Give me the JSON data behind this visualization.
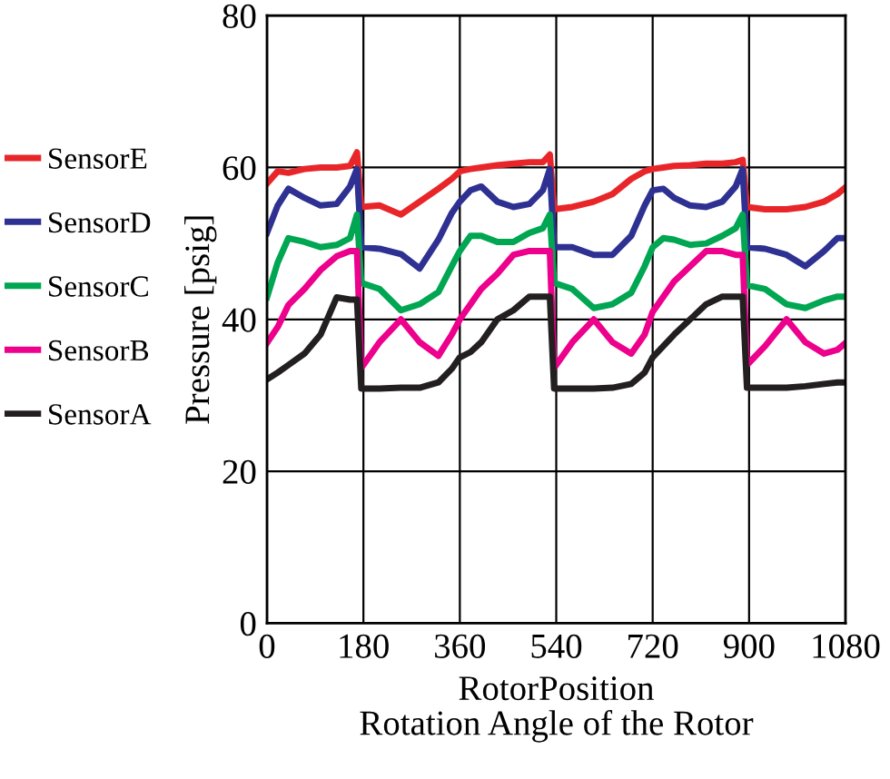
{
  "chart_data": {
    "type": "line",
    "xlabel": "RotorPosition\nRotation Angle of the Rotor",
    "ylabel": "Pressure [psig]",
    "x": [
      0,
      20,
      40,
      70,
      100,
      130,
      155,
      168,
      176,
      210,
      250,
      285,
      320,
      345,
      360,
      380,
      400,
      430,
      460,
      490,
      515,
      528,
      536,
      570,
      610,
      645,
      680,
      705,
      720,
      740,
      760,
      790,
      820,
      850,
      875,
      888,
      896,
      930,
      970,
      1005,
      1040,
      1065,
      1080
    ],
    "xlim": [
      0,
      1080
    ],
    "xticks": [
      0,
      180,
      360,
      540,
      720,
      900,
      1080
    ],
    "ylim": [
      0,
      80
    ],
    "yticks": [
      0,
      20,
      40,
      60,
      80
    ],
    "grid": true,
    "legend": "left",
    "line_style": "solid",
    "marker": "none",
    "series": [
      {
        "name": "SensorE",
        "color": "#e8262a",
        "values": [
          57.9,
          59.5,
          59.3,
          59.8,
          60,
          60,
          60.2,
          62,
          54.8,
          55,
          53.8,
          55.5,
          57.2,
          58.5,
          59.5,
          59.8,
          60,
          60.3,
          60.5,
          60.7,
          60.7,
          61.7,
          54.5,
          54.8,
          55.5,
          56.5,
          58.5,
          59.5,
          59.8,
          60,
          60.2,
          60.3,
          60.5,
          60.5,
          60.7,
          61,
          54.8,
          54.5,
          54.5,
          54.8,
          55.5,
          56.5,
          57.4
        ]
      },
      {
        "name": "SensorD",
        "color": "#2e3192",
        "values": [
          51.4,
          55,
          57.2,
          56,
          55,
          55.2,
          57.5,
          59.8,
          49.5,
          49.3,
          48.6,
          46.7,
          50.5,
          54,
          55.5,
          57,
          57.5,
          55.5,
          54.8,
          55.2,
          57,
          59.8,
          49.5,
          49.5,
          48.5,
          48.5,
          51,
          55,
          57,
          57.2,
          56,
          55,
          54.8,
          55.5,
          57.5,
          59.8,
          49.5,
          49.3,
          48.5,
          47,
          49,
          50.7,
          50.7
        ]
      },
      {
        "name": "SensorC",
        "color": "#00a651",
        "values": [
          42.9,
          47.5,
          50.7,
          50.2,
          49.5,
          49.8,
          50.7,
          53.8,
          44.8,
          44,
          41.2,
          42,
          43.6,
          47,
          49,
          51,
          51,
          50.2,
          50.2,
          51.4,
          52,
          53.8,
          44.8,
          44,
          41.5,
          42,
          43.5,
          47,
          49.5,
          50.7,
          50.5,
          49.8,
          50,
          51,
          52,
          53.8,
          44.5,
          44,
          42,
          41.5,
          42.5,
          43,
          43
        ]
      },
      {
        "name": "SensorB",
        "color": "#ec008c",
        "values": [
          36.9,
          39,
          41.9,
          44,
          46.5,
          48.3,
          49,
          49,
          33.6,
          37,
          40,
          37,
          35.2,
          38,
          40,
          42,
          44,
          46,
          48.5,
          49,
          49,
          49,
          33.6,
          37,
          40,
          37,
          35.5,
          38,
          41,
          43,
          45,
          47,
          49,
          49,
          48.5,
          48.5,
          34,
          36.5,
          40,
          37,
          35.5,
          36,
          36.9
        ]
      },
      {
        "name": "SensorA",
        "color": "#231f20",
        "values": [
          32.1,
          33,
          34,
          35.5,
          38,
          42.9,
          42.6,
          42.6,
          30.9,
          30.9,
          31,
          31,
          31.7,
          33.5,
          35,
          35.7,
          37,
          40,
          41.2,
          43,
          43,
          43,
          30.9,
          30.9,
          30.9,
          31,
          31.5,
          33,
          35,
          36.5,
          38,
          40,
          42,
          43,
          43,
          43,
          31,
          31,
          31,
          31.2,
          31.5,
          31.7,
          31.7
        ]
      }
    ]
  }
}
